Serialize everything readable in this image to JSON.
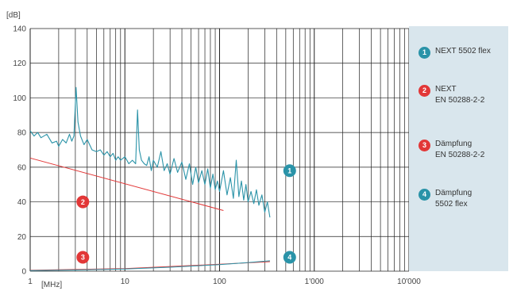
{
  "chart_data": {
    "type": "line",
    "x_scale": "log",
    "xlim": [
      1,
      10000
    ],
    "ylim": [
      0,
      140
    ],
    "yunit": "[dB]",
    "xunit": "[MHz]",
    "grid": true,
    "x_tick_labels": [
      {
        "x": 1,
        "label": "1"
      },
      {
        "x": 10,
        "label": "10"
      },
      {
        "x": 100,
        "label": "100"
      },
      {
        "x": 1000,
        "label": "1'000"
      },
      {
        "x": 10000,
        "label": "10'000"
      }
    ],
    "y_ticks": [
      0,
      20,
      40,
      60,
      80,
      100,
      120,
      140
    ],
    "series": [
      {
        "id": "1",
        "name": "NEXT 5502 flex",
        "color": "#2a93a8",
        "badge_at": [
          550,
          58
        ],
        "points": [
          [
            1,
            81
          ],
          [
            1.1,
            78
          ],
          [
            1.2,
            80
          ],
          [
            1.3,
            77
          ],
          [
            1.5,
            79
          ],
          [
            1.7,
            74
          ],
          [
            1.9,
            75
          ],
          [
            2.0,
            72
          ],
          [
            2.2,
            76
          ],
          [
            2.4,
            74
          ],
          [
            2.6,
            79
          ],
          [
            2.75,
            75
          ],
          [
            2.9,
            78
          ],
          [
            3.05,
            106
          ],
          [
            3.2,
            86
          ],
          [
            3.4,
            78
          ],
          [
            3.7,
            73
          ],
          [
            4.0,
            76
          ],
          [
            4.5,
            70
          ],
          [
            5,
            69
          ],
          [
            5.5,
            70
          ],
          [
            6,
            67
          ],
          [
            6.5,
            69
          ],
          [
            7,
            66
          ],
          [
            7.5,
            68
          ],
          [
            8,
            64
          ],
          [
            8.5,
            66
          ],
          [
            9,
            64
          ],
          [
            10,
            66
          ],
          [
            11,
            62
          ],
          [
            12,
            64
          ],
          [
            13,
            62
          ],
          [
            13.6,
            93
          ],
          [
            14.2,
            70
          ],
          [
            15,
            64
          ],
          [
            16,
            62
          ],
          [
            17,
            61
          ],
          [
            18,
            66
          ],
          [
            19,
            58
          ],
          [
            20,
            64
          ],
          [
            22,
            60
          ],
          [
            24,
            69
          ],
          [
            26,
            58
          ],
          [
            28,
            62
          ],
          [
            30,
            56
          ],
          [
            33,
            65
          ],
          [
            36,
            57
          ],
          [
            40,
            63
          ],
          [
            44,
            53
          ],
          [
            48,
            62
          ],
          [
            52,
            50
          ],
          [
            56,
            60
          ],
          [
            60,
            51
          ],
          [
            65,
            58
          ],
          [
            70,
            50
          ],
          [
            75,
            59
          ],
          [
            80,
            48
          ],
          [
            85,
            56
          ],
          [
            90,
            47
          ],
          [
            95,
            52
          ],
          [
            100,
            46
          ],
          [
            110,
            58
          ],
          [
            120,
            44
          ],
          [
            130,
            54
          ],
          [
            140,
            42
          ],
          [
            150,
            64
          ],
          [
            160,
            43
          ],
          [
            170,
            52
          ],
          [
            180,
            41
          ],
          [
            190,
            50
          ],
          [
            200,
            40
          ],
          [
            215,
            46
          ],
          [
            230,
            39
          ],
          [
            245,
            47
          ],
          [
            260,
            38
          ],
          [
            280,
            44
          ],
          [
            300,
            34
          ],
          [
            320,
            40
          ],
          [
            340,
            31
          ]
        ]
      },
      {
        "id": "2",
        "name": "NEXT EN 50288-2-2",
        "lines": [
          "NEXT",
          "EN 50288-2-2"
        ],
        "color": "#e23737",
        "badge_at": [
          3.6,
          40
        ],
        "points": [
          [
            1,
            65.3
          ],
          [
            110,
            35
          ]
        ]
      },
      {
        "id": "3",
        "name": "Dämpfung EN 50288-2-2",
        "lines": [
          "Dämpfung",
          "EN 50288-2-2"
        ],
        "color": "#e23737",
        "badge_at": [
          3.6,
          8
        ],
        "points": [
          [
            1,
            0.5
          ],
          [
            10,
            1.5
          ],
          [
            100,
            4
          ],
          [
            340,
            5.5
          ]
        ]
      },
      {
        "id": "4",
        "name": "Dämpfung 5502 flex",
        "lines": [
          "Dämpfung",
          "5502 flex"
        ],
        "color": "#2a93a8",
        "badge_at": [
          550,
          8
        ],
        "points": [
          [
            1,
            0.3
          ],
          [
            3,
            0.7
          ],
          [
            10,
            1.3
          ],
          [
            30,
            2.3
          ],
          [
            100,
            3.8
          ],
          [
            200,
            5
          ],
          [
            340,
            6
          ]
        ]
      }
    ]
  }
}
